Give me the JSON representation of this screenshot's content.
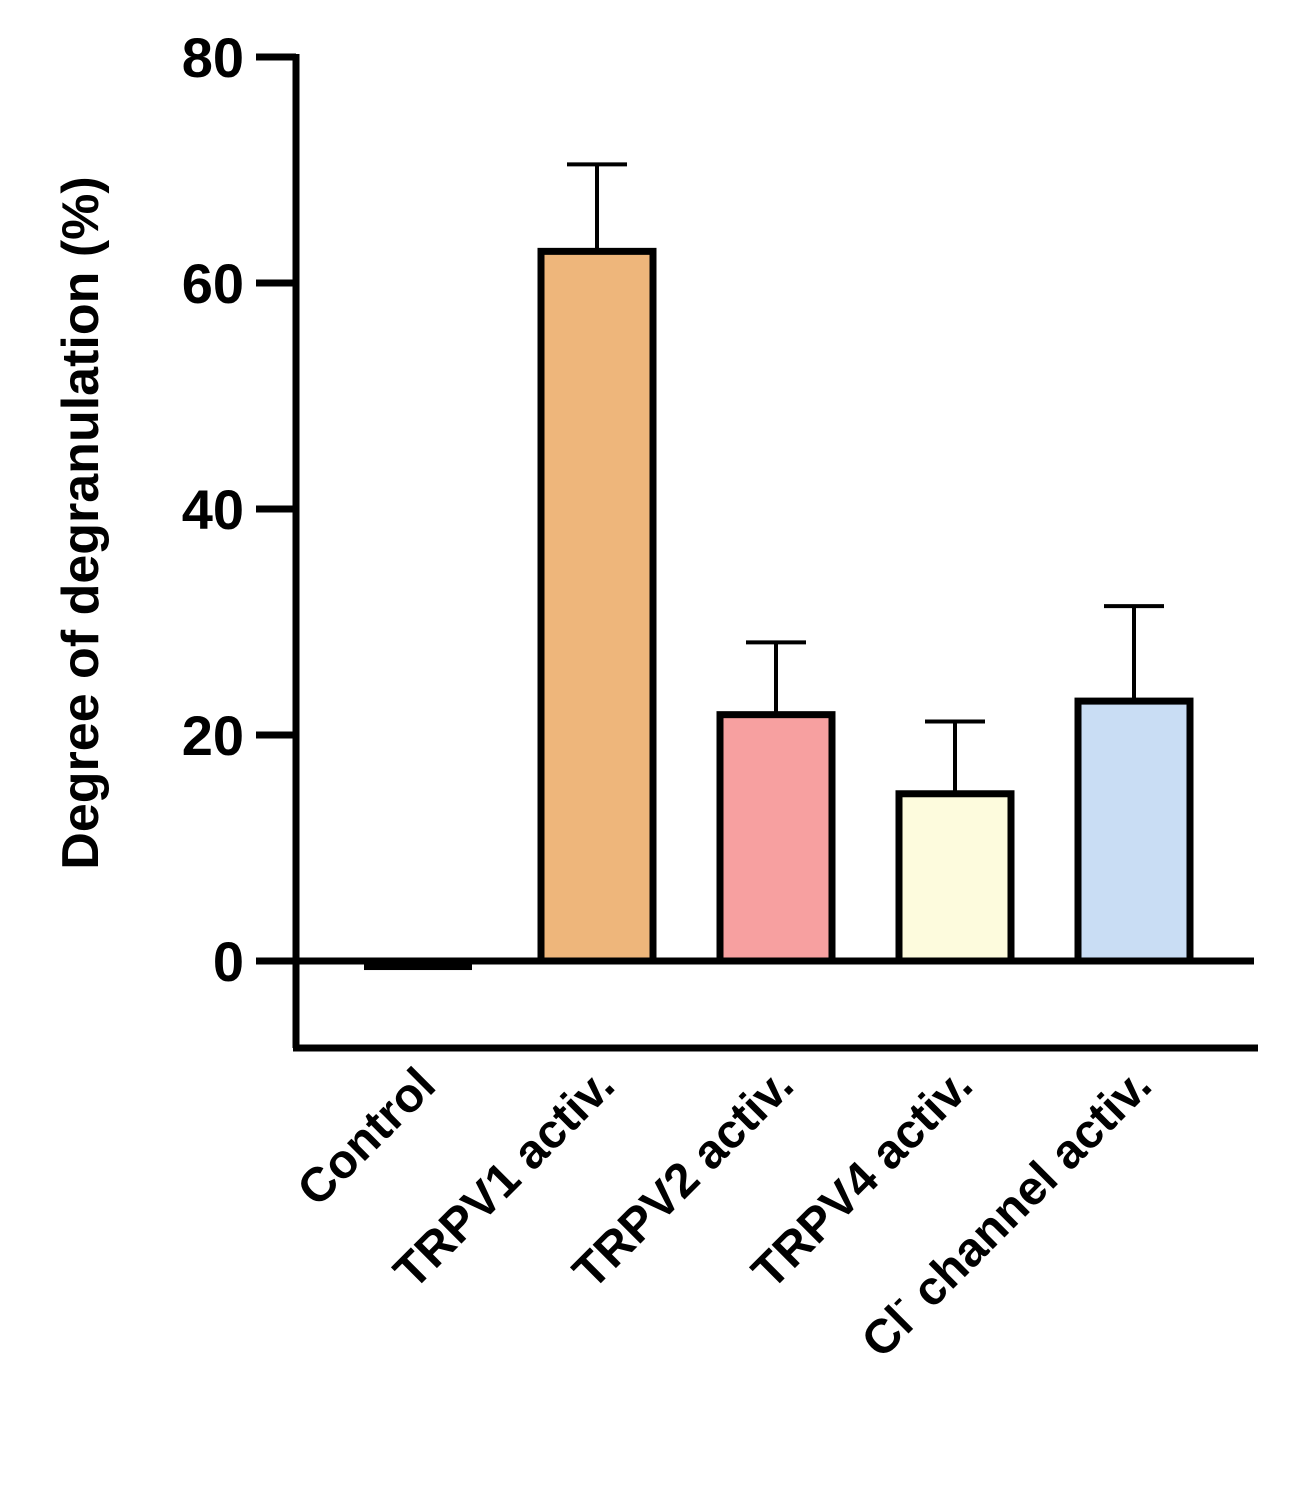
{
  "chart_data": {
    "type": "bar",
    "title": "",
    "xlabel": "",
    "ylabel": "Degree of degranulation (%)",
    "ylim": [
      -7.7,
      80
    ],
    "yticks": [
      0,
      20,
      40,
      60,
      80
    ],
    "grid": false,
    "legend": "none",
    "categories": [
      {
        "text": "Control",
        "sup": ""
      },
      {
        "text": "TRPV1 activ.",
        "sup": ""
      },
      {
        "text": "TRPV2 activ.",
        "sup": ""
      },
      {
        "text": "TRPV4 activ.",
        "sup": ""
      },
      {
        "text": "Cl channel activ.",
        "sup": "-"
      }
    ],
    "values": [
      -0.8,
      62.8,
      21.8,
      14.8,
      23.0
    ],
    "error_upper": [
      0,
      7.7,
      6.4,
      6.4,
      8.4
    ],
    "colors": [
      "#000000",
      "#eeb67b",
      "#f7a0a0",
      "#fdfbdd",
      "#c9ddf4"
    ]
  }
}
